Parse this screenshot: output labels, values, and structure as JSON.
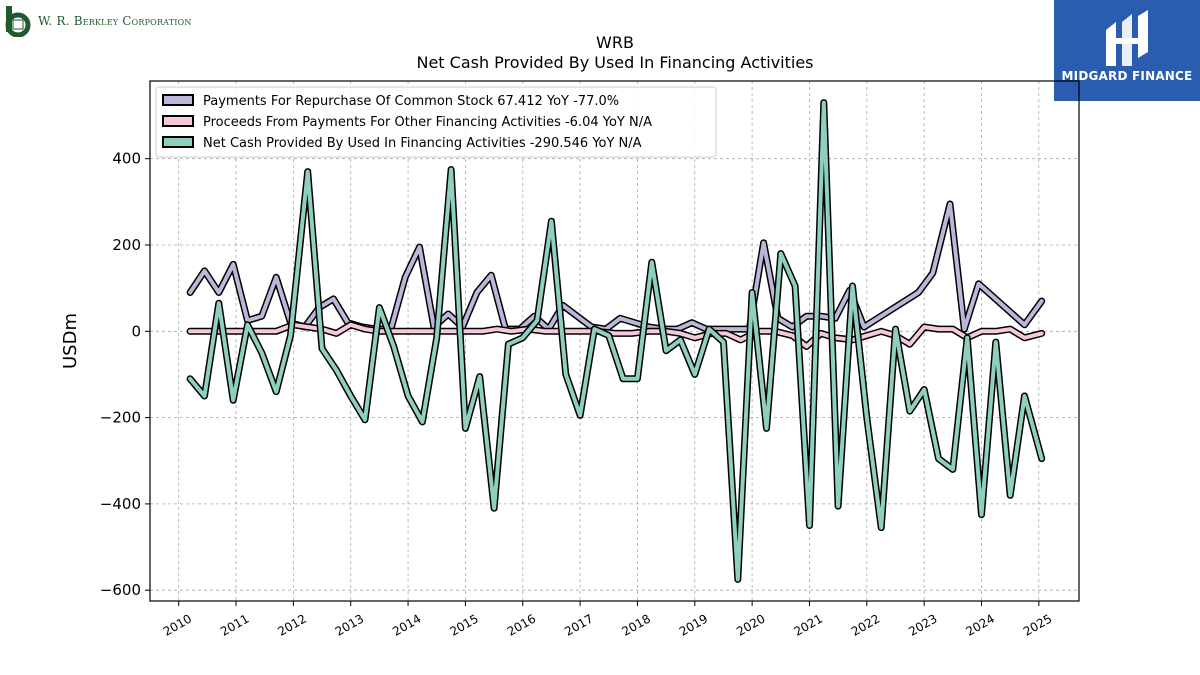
{
  "header": {
    "company_name": "W. R. Berkley Corporation",
    "brand_name": "MIDGARD FINANCE"
  },
  "chart_data": {
    "type": "line",
    "title": "WRB",
    "subtitle": "Net Cash Provided By Used In Financing Activities",
    "ylabel": "USDm",
    "xlabel": "",
    "ylim": [
      -625,
      580
    ],
    "xlim": [
      2009.5,
      2025.7
    ],
    "yticks": [
      -600,
      -400,
      -200,
      0,
      200,
      400
    ],
    "ytick_labels": [
      "−600",
      "−400",
      "−200",
      "0",
      "200",
      "400"
    ],
    "xticks": [
      2010,
      2011,
      2012,
      2013,
      2014,
      2015,
      2016,
      2017,
      2018,
      2019,
      2020,
      2021,
      2022,
      2023,
      2024,
      2025
    ],
    "xtick_labels": [
      "2010",
      "2011",
      "2012",
      "2013",
      "2014",
      "2015",
      "2016",
      "2017",
      "2018",
      "2019",
      "2020",
      "2021",
      "2022",
      "2023",
      "2024",
      "2025"
    ],
    "grid": true,
    "legend_position": "top-left",
    "series": [
      {
        "name": "Payments For Repurchase Of Common Stock",
        "legend": "Payments For Repurchase Of Common Stock  67.412 YoY -77.0%",
        "color": "#bcb6d9",
        "points": [
          [
            2010.2,
            90
          ],
          [
            2010.45,
            140
          ],
          [
            2010.7,
            90
          ],
          [
            2010.95,
            155
          ],
          [
            2011.2,
            25
          ],
          [
            2011.45,
            35
          ],
          [
            2011.7,
            125
          ],
          [
            2011.95,
            20
          ],
          [
            2012.2,
            10
          ],
          [
            2012.45,
            55
          ],
          [
            2012.7,
            75
          ],
          [
            2012.95,
            20
          ],
          [
            2013.2,
            10
          ],
          [
            2013.45,
            5
          ],
          [
            2013.7,
            5
          ],
          [
            2013.95,
            125
          ],
          [
            2014.2,
            195
          ],
          [
            2014.45,
            10
          ],
          [
            2014.7,
            40
          ],
          [
            2014.95,
            10
          ],
          [
            2015.2,
            90
          ],
          [
            2015.45,
            130
          ],
          [
            2015.7,
            5
          ],
          [
            2015.95,
            5
          ],
          [
            2016.2,
            35
          ],
          [
            2016.45,
            5
          ],
          [
            2016.7,
            60
          ],
          [
            2016.95,
            35
          ],
          [
            2017.2,
            10
          ],
          [
            2017.45,
            5
          ],
          [
            2017.7,
            30
          ],
          [
            2017.95,
            20
          ],
          [
            2018.2,
            10
          ],
          [
            2018.45,
            5
          ],
          [
            2018.7,
            5
          ],
          [
            2018.95,
            20
          ],
          [
            2019.2,
            5
          ],
          [
            2019.45,
            5
          ],
          [
            2019.7,
            5
          ],
          [
            2019.95,
            5
          ],
          [
            2020.2,
            205
          ],
          [
            2020.45,
            30
          ],
          [
            2020.7,
            10
          ],
          [
            2020.95,
            35
          ],
          [
            2021.2,
            35
          ],
          [
            2021.45,
            30
          ],
          [
            2021.7,
            95
          ],
          [
            2021.95,
            10
          ],
          [
            2022.9,
            90
          ],
          [
            2023.15,
            135
          ],
          [
            2023.45,
            295
          ],
          [
            2023.7,
            5
          ],
          [
            2023.95,
            110
          ],
          [
            2024.75,
            15
          ],
          [
            2025.05,
            70
          ]
        ]
      },
      {
        "name": "Proceeds From Payments For Other Financing Activities",
        "legend": "Proceeds From Payments For Other Financing Activities  -6.04 YoY N/A",
        "color": "#f5c8dc",
        "points": [
          [
            2010.2,
            0
          ],
          [
            2010.5,
            0
          ],
          [
            2010.8,
            0
          ],
          [
            2011.1,
            0
          ],
          [
            2011.4,
            0
          ],
          [
            2011.7,
            0
          ],
          [
            2012,
            15
          ],
          [
            2012.25,
            10
          ],
          [
            2012.5,
            5
          ],
          [
            2012.75,
            -5
          ],
          [
            2013,
            15
          ],
          [
            2013.25,
            5
          ],
          [
            2013.5,
            0
          ],
          [
            2013.8,
            0
          ],
          [
            2014.1,
            0
          ],
          [
            2014.4,
            0
          ],
          [
            2014.7,
            0
          ],
          [
            2015,
            0
          ],
          [
            2015.3,
            0
          ],
          [
            2015.55,
            5
          ],
          [
            2015.8,
            0
          ],
          [
            2016.1,
            5
          ],
          [
            2016.4,
            0
          ],
          [
            2016.7,
            0
          ],
          [
            2017,
            0
          ],
          [
            2017.3,
            0
          ],
          [
            2017.6,
            -5
          ],
          [
            2017.9,
            -5
          ],
          [
            2018.2,
            0
          ],
          [
            2018.5,
            0
          ],
          [
            2018.75,
            -5
          ],
          [
            2019,
            -15
          ],
          [
            2019.3,
            -5
          ],
          [
            2019.55,
            -5
          ],
          [
            2019.8,
            -20
          ],
          [
            2020.1,
            0
          ],
          [
            2020.4,
            0
          ],
          [
            2020.7,
            -10
          ],
          [
            2020.95,
            -35
          ],
          [
            2021.2,
            -5
          ],
          [
            2021.45,
            -15
          ],
          [
            2021.75,
            -20
          ],
          [
            2022,
            -10
          ],
          [
            2022.25,
            0
          ],
          [
            2022.5,
            -10
          ],
          [
            2022.75,
            -30
          ],
          [
            2023,
            10
          ],
          [
            2023.25,
            5
          ],
          [
            2023.5,
            5
          ],
          [
            2023.75,
            -15
          ],
          [
            2024,
            0
          ],
          [
            2024.25,
            0
          ],
          [
            2024.5,
            5
          ],
          [
            2024.75,
            -15
          ],
          [
            2025.05,
            -5
          ]
        ]
      },
      {
        "name": "Net Cash Provided By Used In Financing Activities",
        "legend": "Net Cash Provided By Used In Financing Activities  -290.546 YoY N/A",
        "color": "#8fcfc0",
        "points": [
          [
            2010.2,
            -110
          ],
          [
            2010.45,
            -150
          ],
          [
            2010.7,
            65
          ],
          [
            2010.95,
            -160
          ],
          [
            2011.2,
            15
          ],
          [
            2011.45,
            -50
          ],
          [
            2011.7,
            -140
          ],
          [
            2011.95,
            -10
          ],
          [
            2012.25,
            370
          ],
          [
            2012.5,
            -40
          ],
          [
            2012.75,
            -90
          ],
          [
            2013.0,
            -150
          ],
          [
            2013.25,
            -205
          ],
          [
            2013.5,
            55
          ],
          [
            2013.75,
            -35
          ],
          [
            2014.0,
            -150
          ],
          [
            2014.25,
            -210
          ],
          [
            2014.5,
            -15
          ],
          [
            2014.75,
            375
          ],
          [
            2015.0,
            -225
          ],
          [
            2015.25,
            -105
          ],
          [
            2015.5,
            -410
          ],
          [
            2015.75,
            -30
          ],
          [
            2016.0,
            -15
          ],
          [
            2016.25,
            25
          ],
          [
            2016.5,
            255
          ],
          [
            2016.75,
            -100
          ],
          [
            2017.0,
            -195
          ],
          [
            2017.25,
            5
          ],
          [
            2017.5,
            -10
          ],
          [
            2017.75,
            -110
          ],
          [
            2018.0,
            -110
          ],
          [
            2018.25,
            160
          ],
          [
            2018.5,
            -45
          ],
          [
            2018.75,
            -20
          ],
          [
            2019.0,
            -100
          ],
          [
            2019.25,
            5
          ],
          [
            2019.5,
            -25
          ],
          [
            2019.75,
            -575
          ],
          [
            2020.0,
            90
          ],
          [
            2020.25,
            -225
          ],
          [
            2020.5,
            180
          ],
          [
            2020.75,
            105
          ],
          [
            2021.0,
            -450
          ],
          [
            2021.25,
            530
          ],
          [
            2021.5,
            -405
          ],
          [
            2021.75,
            105
          ],
          [
            2022.0,
            -200
          ],
          [
            2022.25,
            -455
          ],
          [
            2022.5,
            5
          ],
          [
            2022.75,
            -185
          ],
          [
            2023.0,
            -135
          ],
          [
            2023.25,
            -295
          ],
          [
            2023.5,
            -320
          ],
          [
            2023.75,
            -15
          ],
          [
            2024.0,
            -425
          ],
          [
            2024.25,
            -25
          ],
          [
            2024.5,
            -380
          ],
          [
            2024.75,
            -150
          ],
          [
            2025.05,
            -295
          ]
        ]
      }
    ]
  }
}
